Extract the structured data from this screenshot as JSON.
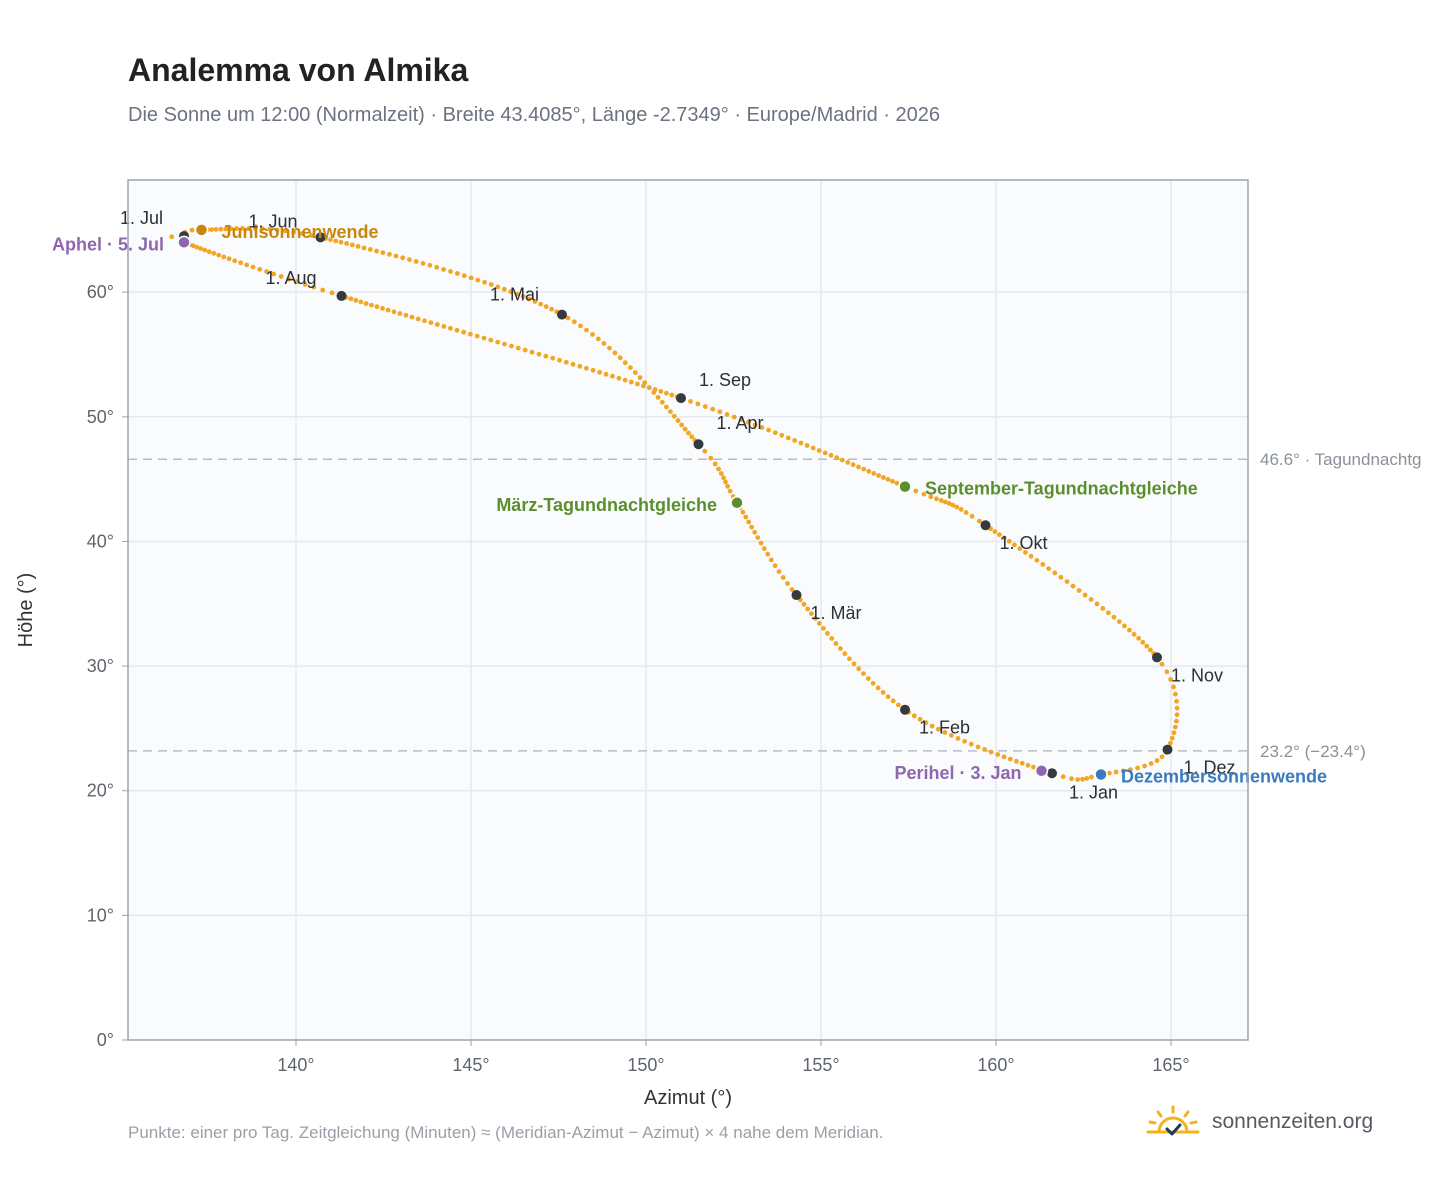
{
  "page": {
    "title": "Analemma von Almika",
    "subtitle": "Die Sonne um 12:00 (Normalzeit) · Breite 43.4085°, Länge -2.7349° · Europe/Madrid · 2026",
    "footnote": "Punkte: einer pro Tag. Zeitgleichung (Minuten) ≈ (Meridian-Azimut − Azimut) × 4 nahe dem Meridian.",
    "brand": "sonnenzeiten.org",
    "brand_icon": "sun-check-icon"
  },
  "chart_data": {
    "type": "scatter",
    "xlabel": "Azimut (°)",
    "ylabel": "Höhe (°)",
    "xlim": [
      135.2,
      167.2
    ],
    "ylim": [
      0,
      69
    ],
    "xticks": [
      140,
      145,
      150,
      155,
      160,
      165
    ],
    "yticks": [
      0,
      10,
      20,
      30,
      40,
      50,
      60
    ],
    "tick_suffix": "°",
    "grid": true,
    "colors": {
      "path": "#f2a623",
      "month_marker": "#343a40",
      "equinox": "#5b8f2e",
      "june_solstice": "#c8870c",
      "december_solstice": "#3a7abf",
      "aphelion_perihelion": "#8e67b0",
      "reference_line": "#b8bec7",
      "plot_background": "#f9fbfd",
      "grid": "#e5e9ef"
    },
    "reference_lines": [
      {
        "y": 46.6,
        "label": "46.6° · Tagundnachtg"
      },
      {
        "y": 23.2,
        "label": "23.2° (−23.4°)"
      }
    ],
    "path_anchors": [
      {
        "x": 161.6,
        "y": 21.4
      },
      {
        "x": 157.4,
        "y": 26.5
      },
      {
        "x": 154.3,
        "y": 35.7
      },
      {
        "x": 152.6,
        "y": 43.1
      },
      {
        "x": 151.5,
        "y": 47.8
      },
      {
        "x": 147.6,
        "y": 58.2
      },
      {
        "x": 140.7,
        "y": 64.4
      },
      {
        "x": 137.3,
        "y": 65.0
      },
      {
        "x": 136.8,
        "y": 64.5
      },
      {
        "x": 136.8,
        "y": 64.0
      },
      {
        "x": 141.3,
        "y": 59.7
      },
      {
        "x": 151.0,
        "y": 51.5
      },
      {
        "x": 157.4,
        "y": 44.4
      },
      {
        "x": 159.7,
        "y": 41.3
      },
      {
        "x": 164.6,
        "y": 30.7
      },
      {
        "x": 164.9,
        "y": 23.3
      },
      {
        "x": 163.0,
        "y": 21.3
      }
    ],
    "month_markers": [
      {
        "label": "1. Jan",
        "x": 161.6,
        "y": 21.4
      },
      {
        "label": "1. Feb",
        "x": 157.4,
        "y": 26.5
      },
      {
        "label": "1. Mär",
        "x": 154.3,
        "y": 35.7
      },
      {
        "label": "1. Apr",
        "x": 151.5,
        "y": 47.8
      },
      {
        "label": "1. Mai",
        "x": 147.6,
        "y": 58.2
      },
      {
        "label": "1. Jun",
        "x": 140.7,
        "y": 64.4
      },
      {
        "label": "1. Jul",
        "x": 136.8,
        "y": 64.5
      },
      {
        "label": "1. Aug",
        "x": 141.3,
        "y": 59.7
      },
      {
        "label": "1. Sep",
        "x": 151.0,
        "y": 51.5
      },
      {
        "label": "1. Okt",
        "x": 159.7,
        "y": 41.3
      },
      {
        "label": "1. Nov",
        "x": 164.6,
        "y": 30.7
      },
      {
        "label": "1. Dez",
        "x": 164.9,
        "y": 23.3
      }
    ],
    "events": [
      {
        "label": "Junisonnenwende",
        "x": 137.3,
        "y": 65.0,
        "kind": "june_solstice"
      },
      {
        "label": "März-Tagundnachtgleiche",
        "x": 152.6,
        "y": 43.1,
        "kind": "equinox"
      },
      {
        "label": "September-Tagundnachtgleiche",
        "x": 157.4,
        "y": 44.4,
        "kind": "equinox"
      },
      {
        "label": "Dezembersonnenwende",
        "x": 163.0,
        "y": 21.3,
        "kind": "december_solstice"
      },
      {
        "label": "Aphel · 5. Jul",
        "x": 136.8,
        "y": 64.0,
        "kind": "aphelion_perihelion"
      },
      {
        "label": "Perihel · 3. Jan",
        "x": 161.3,
        "y": 21.6,
        "kind": "aphelion_perihelion"
      }
    ]
  }
}
